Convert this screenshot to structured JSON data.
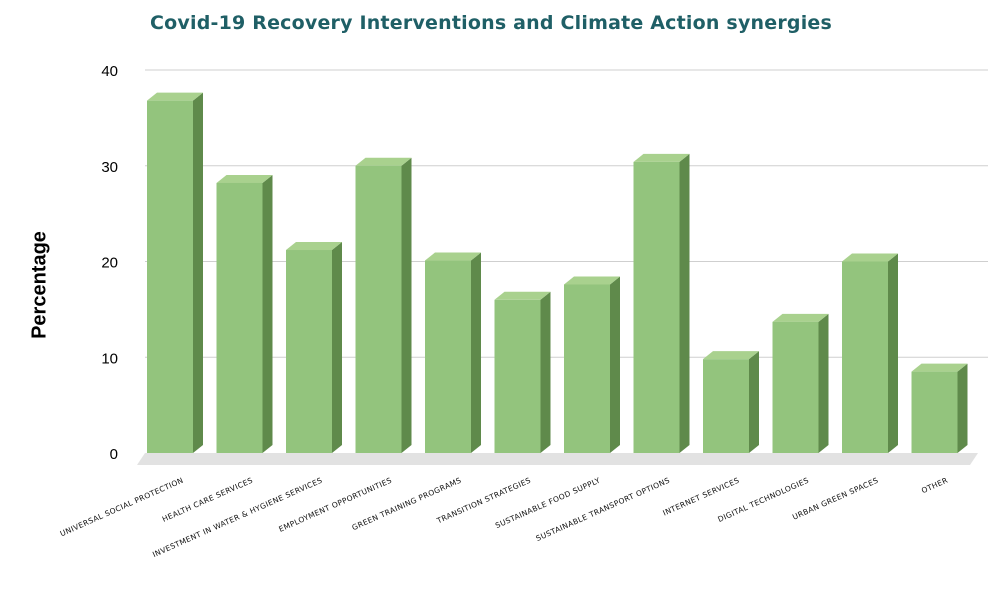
{
  "chart_data": {
    "type": "bar",
    "title": "Covid-19 Recovery Interventions and Climate Action synergies",
    "xlabel": "",
    "ylabel": "Percentage",
    "ylim": [
      0,
      40
    ],
    "yticks": [
      "0",
      "10",
      "20",
      "30",
      "40"
    ],
    "grid": true,
    "categories": [
      "UNIVERSAL SOCIAL PROTECTION",
      "HEALTH CARE SERVICES",
      "INVESTMENT IN WATER & HYGIENE SERVICES",
      "EMPLOYMENT OPPORTUNITIES",
      "GREEN TRAINING PROGRAMS",
      "TRANSITION STRATEGIES",
      "SUSTAINABLE FOOD SUPPLY",
      "SUSTAINABLE TRANSPORT OPTIONS",
      "INTERNET SERVICES",
      "DIGITAL TECHNOLOGIES",
      "URBAN GREEN SPACES",
      "OTHER"
    ],
    "values": [
      36.8,
      28.2,
      21.2,
      30,
      20.1,
      16,
      17.6,
      30.4,
      9.8,
      13.7,
      20,
      8.5
    ],
    "colors": {
      "bar_front": "#93c47d",
      "bar_side": "#5f8a4b",
      "bar_top": "#a9d18e",
      "title": "#1f5f66"
    }
  }
}
